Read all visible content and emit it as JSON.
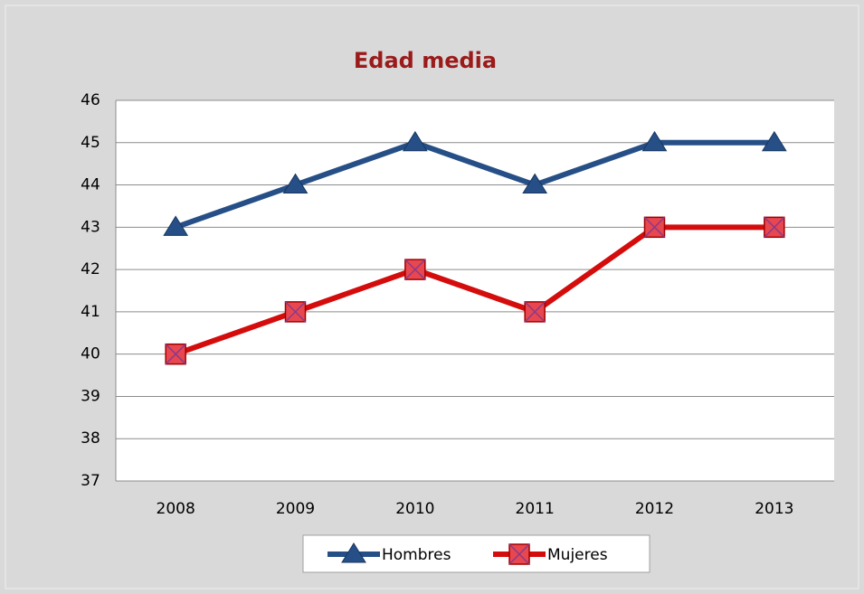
{
  "chart_data": {
    "type": "line",
    "title": "Edad media",
    "categories": [
      "2008",
      "2009",
      "2010",
      "2011",
      "2012",
      "2013"
    ],
    "series": [
      {
        "name": "Hombres",
        "color": "#254f86",
        "values": [
          43,
          44,
          45,
          44,
          45,
          45
        ]
      },
      {
        "name": "Mujeres",
        "color": "#d40c0c",
        "values": [
          40,
          41,
          42,
          41,
          43,
          43
        ]
      }
    ],
    "ylim": [
      37,
      46
    ],
    "yticks": [
      37,
      38,
      39,
      40,
      41,
      42,
      43,
      44,
      45,
      46
    ],
    "grid": true,
    "legend": "bottom"
  }
}
